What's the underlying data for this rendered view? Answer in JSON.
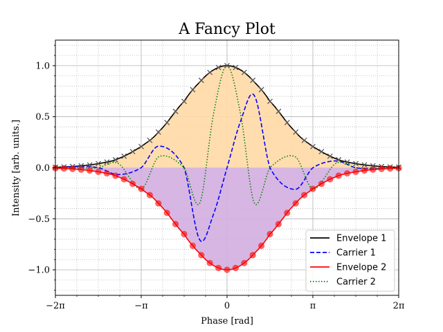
{
  "chart_data": {
    "type": "line",
    "title": "A Fancy Plot",
    "xlabel": "Phase [rad]",
    "ylabel": "Intensity [arb. units.]",
    "xlim": [
      -6.2832,
      6.2832
    ],
    "ylim": [
      -1.25,
      1.25
    ],
    "x_ticks": [
      {
        "value": -6.2832,
        "label": "−2π"
      },
      {
        "value": -3.1416,
        "label": "−π"
      },
      {
        "value": 0,
        "label": "0"
      },
      {
        "value": 3.1416,
        "label": "π"
      },
      {
        "value": 6.2832,
        "label": "2π"
      }
    ],
    "y_ticks": [
      {
        "value": -1.0,
        "label": "−1.0"
      },
      {
        "value": -0.5,
        "label": "−0.5"
      },
      {
        "value": 0.0,
        "label": "0.0"
      },
      {
        "value": 0.5,
        "label": "0.5"
      },
      {
        "value": 1.0,
        "label": "1.0"
      }
    ],
    "grid": {
      "major": true,
      "minor": true
    },
    "legend_position": "lower-right",
    "x": [
      -6.2832,
      -5.5,
      -4.7124,
      -4.0,
      -3.1416,
      -2.5,
      -1.5708,
      -1.0,
      -0.5,
      0,
      0.5,
      1.0,
      1.5708,
      2.5,
      3.1416,
      4.0,
      4.7124,
      5.5,
      6.2832
    ],
    "series": [
      {
        "name": "Envelope 1",
        "color": "#000000",
        "dash": "solid",
        "marker": "x",
        "values": [
          0.005,
          0.015,
          0.04,
          0.087,
          0.207,
          0.354,
          0.65,
          0.839,
          0.957,
          1.0,
          0.957,
          0.839,
          0.65,
          0.354,
          0.207,
          0.087,
          0.04,
          0.015,
          0.005
        ]
      },
      {
        "name": "Carrier 1",
        "color": "#0000ff",
        "dash": "dashed",
        "values": [
          0.0,
          0.011,
          0.0,
          -0.067,
          -0.0,
          0.212,
          0.0,
          -0.706,
          -0.459,
          0.0,
          0.459,
          0.706,
          0.0,
          -0.212,
          0.0,
          0.067,
          0.0,
          -0.011,
          0.0
        ]
      },
      {
        "name": "Envelope 2",
        "color": "#ff0000",
        "dash": "solid",
        "marker": "o",
        "values": [
          -0.005,
          -0.015,
          -0.04,
          -0.087,
          -0.207,
          -0.354,
          -0.65,
          -0.839,
          -0.957,
          -1.0,
          -0.957,
          -0.839,
          -0.65,
          -0.354,
          -0.207,
          -0.087,
          -0.04,
          -0.015,
          -0.005
        ]
      },
      {
        "name": "Carrier 2",
        "color": "#008000",
        "dash": "dotted",
        "values": [
          0.005,
          -0.002,
          0.0,
          0.044,
          -0.207,
          0.108,
          0.0,
          -0.348,
          0.518,
          1.0,
          0.518,
          -0.348,
          0.0,
          0.108,
          -0.207,
          0.044,
          0.0,
          -0.002,
          0.005
        ]
      }
    ],
    "fill_colors": {
      "upper": "#ffd9a6",
      "lower": "#d3aee0"
    }
  }
}
